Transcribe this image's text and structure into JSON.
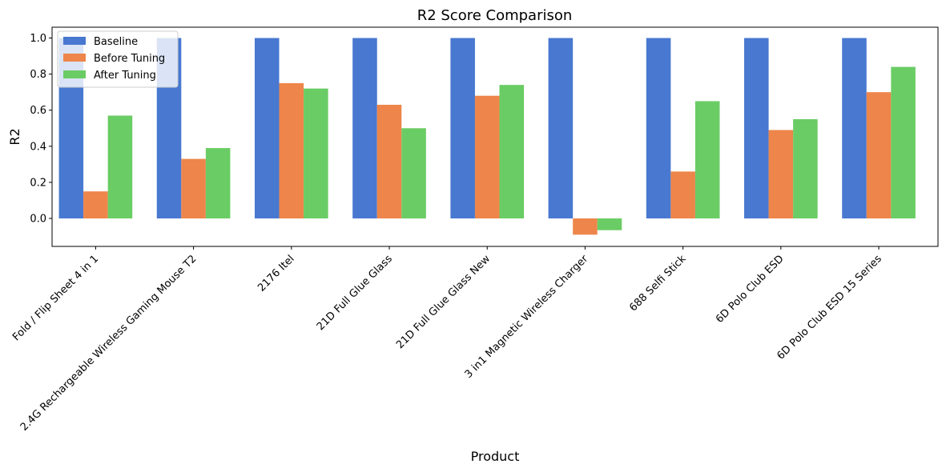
{
  "chart_data": {
    "type": "bar",
    "title": "R2 Score Comparison",
    "xlabel": "Product",
    "ylabel": "R2",
    "ylim": [
      -0.155,
      1.06
    ],
    "yticks": [
      "0.0",
      "0.2",
      "0.4",
      "0.6",
      "0.8",
      "1.0"
    ],
    "categories": [
      "Fold / Flip Sheet 4 in 1",
      "2.4G Rechargeable Wireless Gaming Mouse T2",
      "2176 Itel",
      "21D Full Glue Glass",
      "21D Full Glue Glass New",
      "3 in1 Magnetic Wireless Charger",
      "688 Selfi Stick",
      "6D Polo Club ESD",
      "6D Polo Club ESD 15 Series"
    ],
    "series": [
      {
        "name": "Baseline",
        "color": "#4878d0",
        "values": [
          1.0,
          1.0,
          1.0,
          1.0,
          1.0,
          1.0,
          1.0,
          1.0,
          1.0
        ]
      },
      {
        "name": "Before Tuning",
        "color": "#ee854a",
        "values": [
          0.15,
          0.33,
          0.75,
          0.63,
          0.68,
          -0.09,
          0.26,
          0.49,
          0.7
        ]
      },
      {
        "name": "After Tuning",
        "color": "#6acc64",
        "values": [
          0.57,
          0.39,
          0.72,
          0.5,
          0.74,
          -0.065,
          0.65,
          0.55,
          0.84
        ]
      }
    ],
    "legend_position": "top-left",
    "grid": false
  }
}
